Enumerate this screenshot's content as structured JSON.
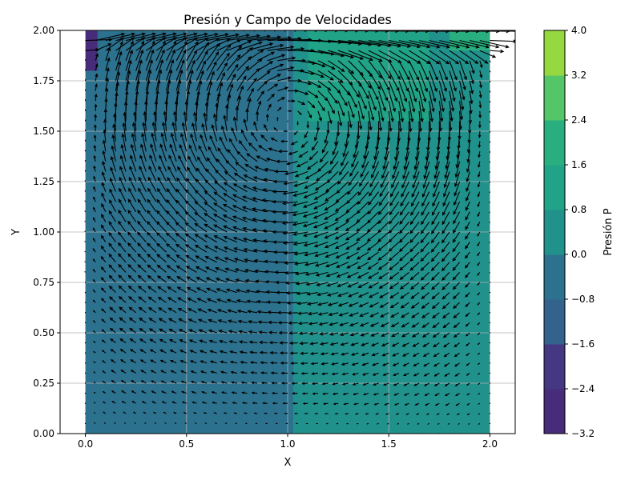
{
  "chart_data": {
    "type": "contour",
    "title": "Presión y Campo de Velocidades",
    "xlabel": "X",
    "ylabel": "Y",
    "xlim": [
      -0.125,
      2.125
    ],
    "ylim": [
      0.0,
      2.0
    ],
    "x_ticks": [
      0.0,
      0.5,
      1.0,
      1.5,
      2.0
    ],
    "x_tick_labels": [
      "0.0",
      "0.5",
      "1.0",
      "1.5",
      "2.0"
    ],
    "y_ticks": [
      0.0,
      0.25,
      0.5,
      0.75,
      1.0,
      1.25,
      1.5,
      1.75,
      2.0
    ],
    "y_tick_labels": [
      "0.00",
      "0.25",
      "0.50",
      "0.75",
      "1.00",
      "1.25",
      "1.50",
      "1.75",
      "2.00"
    ],
    "grid": true,
    "domain": {
      "x": [
        0.0,
        2.0
      ],
      "y": [
        0.0,
        2.0
      ]
    },
    "colorbar": {
      "label": "Presión P",
      "levels": [
        -3.2,
        -2.4,
        -1.6,
        -0.8,
        0.0,
        0.8,
        1.6,
        2.4,
        3.2,
        4.0
      ],
      "tick_labels": [
        "−3.2",
        "−2.4",
        "−1.6",
        "−0.8",
        "0.0",
        "0.8",
        "1.6",
        "2.4",
        "3.2",
        "4.0"
      ],
      "colors": [
        "#472c7a",
        "#453781",
        "#33638d",
        "#2c728e",
        "#21918c",
        "#20a386",
        "#29af7f",
        "#55c667",
        "#95d840",
        "#dde318"
      ]
    },
    "pressure_regions": [
      {
        "x": [
          0.0,
          1.03
        ],
        "y": [
          0.0,
          2.0
        ],
        "level": "-0.8 to 0.0"
      },
      {
        "x": [
          1.03,
          2.0
        ],
        "y": [
          0.0,
          2.0
        ],
        "level": "0.0 to 0.8"
      },
      {
        "x": [
          1.1,
          1.7
        ],
        "y": [
          1.55,
          2.0
        ],
        "level": "0.8 to 1.6"
      },
      {
        "x": [
          1.8,
          2.0
        ],
        "y": [
          1.9,
          2.0
        ],
        "level": "1.6 to 2.4"
      },
      {
        "x": [
          0.0,
          0.06
        ],
        "y": [
          1.8,
          2.0
        ],
        "level": "-3.2 to -1.6"
      }
    ],
    "velocity_field": {
      "kind": "quiver",
      "flow": "lid-driven cavity, clockwise recirculating vortex",
      "lid_velocity_direction": "+x along y = 2.0",
      "vortex_center": [
        1.0,
        1.55
      ],
      "arrow_color": "#000000"
    }
  }
}
